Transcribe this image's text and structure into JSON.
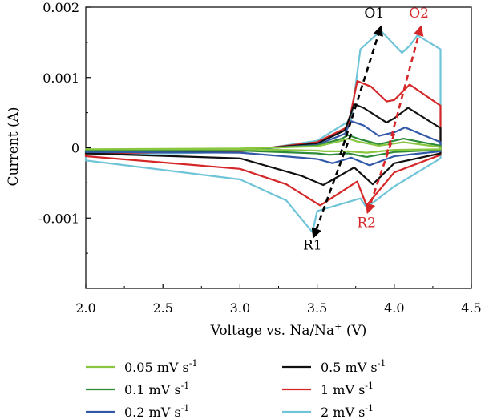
{
  "chart_data": {
    "type": "line",
    "title": "",
    "xlabel": "Voltage vs. Na/Na",
    "xlabel_sup": "+",
    "xlabel_unit": " (V)",
    "ylabel": "Current (A)",
    "xlim": [
      2.0,
      4.5
    ],
    "ylim": [
      -0.002,
      0.002
    ],
    "xticks": [
      2.0,
      2.5,
      3.0,
      3.5,
      4.0,
      4.5
    ],
    "xtick_labels": [
      "2.0",
      "2.5",
      "3.0",
      "3.5",
      "4.0",
      "4.5"
    ],
    "yticks": [
      -0.001,
      0,
      0.001,
      0.002
    ],
    "ytick_labels": [
      "-0.001",
      "0",
      "0.001",
      "0.002"
    ],
    "grid": false,
    "legend_position": "bottom",
    "unit_base": "mV s",
    "unit_exp": "-1",
    "series": [
      {
        "name": "0.05 mV s-1",
        "label_value": "0.05",
        "color": "#8ac640",
        "x": [
          2.0,
          3.0,
          3.5,
          3.66,
          3.7,
          3.76,
          3.9,
          4.0,
          4.06,
          4.3,
          4.3,
          4.0,
          3.82,
          3.7,
          3.55,
          3.5,
          3.0,
          2.0
        ],
        "y": [
          -2e-05,
          -1e-05,
          2e-05,
          0.0001,
          0.00013,
          9e-05,
          3e-05,
          6e-05,
          8e-05,
          1e-05,
          -2e-05,
          -3e-05,
          -7e-05,
          -5e-05,
          -5e-05,
          -4e-05,
          -2e-05,
          -2e-05
        ]
      },
      {
        "name": "0.1 mV s-1",
        "label_value": "0.1",
        "color": "#2d8a3a",
        "x": [
          2.0,
          3.0,
          3.5,
          3.66,
          3.7,
          3.78,
          3.9,
          4.0,
          4.06,
          4.3,
          4.3,
          4.0,
          3.82,
          3.7,
          3.58,
          3.5,
          3.0,
          2.0
        ],
        "y": [
          -3e-05,
          -2e-05,
          3e-05,
          0.00013,
          0.00018,
          0.00012,
          5e-05,
          0.0001,
          0.00013,
          3e-05,
          -3e-05,
          -6e-05,
          -0.00013,
          -8e-05,
          -0.0001,
          -8e-05,
          -4e-05,
          -4e-05
        ]
      },
      {
        "name": "0.2 mV s-1",
        "label_value": "0.2",
        "color": "#3259a8",
        "x": [
          2.0,
          3.0,
          3.5,
          3.68,
          3.72,
          3.8,
          3.9,
          4.0,
          4.07,
          4.3,
          4.3,
          4.0,
          3.84,
          3.72,
          3.6,
          3.5,
          3.0,
          2.0
        ],
        "y": [
          -4e-05,
          -3e-05,
          4e-05,
          0.0002,
          0.00038,
          0.00032,
          0.00017,
          0.00022,
          0.00029,
          8e-05,
          -5e-05,
          -0.00012,
          -0.00025,
          -0.00014,
          -0.00022,
          -0.00016,
          -7e-05,
          -6e-05
        ]
      },
      {
        "name": "0.5 mV s-1",
        "label_value": "0.5",
        "color": "#111111",
        "x": [
          2.0,
          3.0,
          3.5,
          3.68,
          3.74,
          3.8,
          3.95,
          4.0,
          4.09,
          4.3,
          4.3,
          4.0,
          3.86,
          3.74,
          3.54,
          3.4,
          3.0,
          2.0
        ],
        "y": [
          -6e-05,
          -4e-05,
          6e-05,
          0.00025,
          0.00062,
          0.00057,
          0.00036,
          0.00042,
          0.00057,
          0.00028,
          -8e-05,
          -0.00022,
          -0.00052,
          -0.00028,
          -0.00053,
          -0.0004,
          -0.00015,
          -8e-05
        ]
      },
      {
        "name": "1 mV s-1",
        "label_value": "1",
        "color": "#d62728",
        "x": [
          2.0,
          3.0,
          3.5,
          3.7,
          3.76,
          3.85,
          3.95,
          4.0,
          4.1,
          4.3,
          4.3,
          4.0,
          3.82,
          3.76,
          3.52,
          3.3,
          3.0,
          2.0
        ],
        "y": [
          -8e-05,
          -5e-05,
          8e-05,
          0.0003,
          0.00095,
          0.00087,
          0.00066,
          0.00068,
          0.0009,
          0.0006,
          -0.0001,
          -0.00035,
          -0.00082,
          -0.00048,
          -0.00082,
          -0.00052,
          -0.0003,
          -0.00012
        ]
      },
      {
        "name": "2 mV s-1",
        "label_value": "2",
        "color": "#6fc4d8",
        "x": [
          2.0,
          3.0,
          3.5,
          3.72,
          3.78,
          3.88,
          3.92,
          4.05,
          4.1,
          4.15,
          4.3,
          4.3,
          4.0,
          3.82,
          3.78,
          3.5,
          3.47,
          3.3,
          3.0,
          2.0
        ],
        "y": [
          -0.0001,
          -6e-05,
          0.0001,
          0.0004,
          0.0014,
          0.0016,
          0.00165,
          0.00135,
          0.00145,
          0.0016,
          0.0014,
          -0.00015,
          -0.00055,
          -0.00085,
          -0.00072,
          -0.0009,
          -0.0012,
          -0.00075,
          -0.00045,
          -0.00018
        ]
      }
    ],
    "annotations": [
      {
        "label": "O1",
        "color": "#000000",
        "x": 3.87,
        "y": 0.00185
      },
      {
        "label": "O2",
        "color": "#d62728",
        "x": 4.16,
        "y": 0.00185
      },
      {
        "label": "R1",
        "color": "#000000",
        "x": 3.47,
        "y": -0.00145
      },
      {
        "label": "R2",
        "color": "#d62728",
        "x": 3.82,
        "y": -0.00113
      }
    ],
    "arrows": [
      {
        "color": "#000000",
        "from": [
          3.65,
          -0.0001
        ],
        "to": [
          3.91,
          0.0017
        ]
      },
      {
        "color": "#d62728",
        "from": [
          3.95,
          -0.0001
        ],
        "to": [
          4.17,
          0.0017
        ]
      },
      {
        "color": "#000000",
        "from": [
          3.72,
          0.0002
        ],
        "to": [
          3.48,
          -0.00125
        ]
      },
      {
        "color": "#d62728",
        "from": [
          4.0,
          0.0002
        ],
        "to": [
          3.83,
          -0.0009
        ]
      }
    ]
  }
}
